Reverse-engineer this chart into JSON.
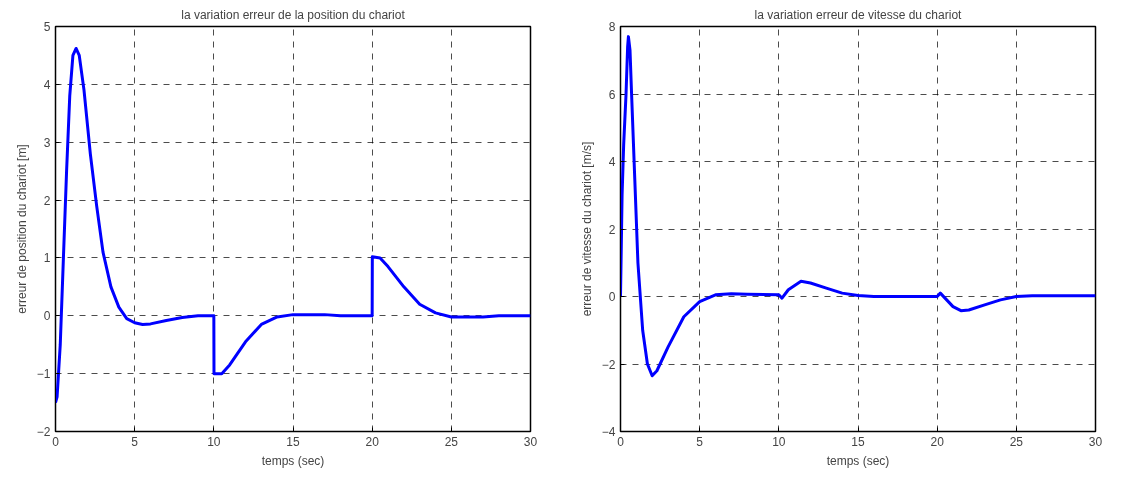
{
  "chart_data": [
    {
      "type": "line",
      "title": "la variation erreur de la position du chariot",
      "xlabel": "temps (sec)",
      "ylabel": "erreur de position du chariot [m]",
      "xlim": [
        0,
        30
      ],
      "ylim": [
        -2,
        5
      ],
      "xticks": [
        0,
        5,
        10,
        15,
        20,
        25,
        30
      ],
      "yticks": [
        -2,
        -1,
        0,
        1,
        2,
        3,
        4,
        5
      ],
      "grid": true,
      "line_style": "solid",
      "series": [
        {
          "color": "#0000ff",
          "x": [
            0,
            0.1,
            0.3,
            0.5,
            0.7,
            0.9,
            1.1,
            1.3,
            1.5,
            1.8,
            2.2,
            2.6,
            3.0,
            3.5,
            4.0,
            4.5,
            5.0,
            5.5,
            6,
            7,
            8,
            9,
            10,
            10.01,
            10.5,
            11,
            12,
            13,
            14,
            15,
            17,
            18,
            20,
            20.01,
            20.5,
            21,
            22,
            23,
            24,
            25,
            27,
            28,
            30
          ],
          "values": [
            -1.5,
            -1.4,
            -0.5,
            1.0,
            2.5,
            3.8,
            4.5,
            4.62,
            4.5,
            3.9,
            2.8,
            1.9,
            1.1,
            0.5,
            0.15,
            -0.05,
            -0.12,
            -0.15,
            -0.14,
            -0.08,
            -0.03,
            0,
            0,
            -1.0,
            -1.0,
            -0.85,
            -0.45,
            -0.15,
            -0.02,
            0.02,
            0.02,
            0,
            0,
            1.02,
            1.0,
            0.85,
            0.5,
            0.2,
            0.05,
            -0.02,
            -0.02,
            0,
            0
          ]
        }
      ]
    },
    {
      "type": "line",
      "title": "la variation erreur de vitesse du chariot",
      "xlabel": "temps (sec)",
      "ylabel": "erreur de vitesse du chariot [m/s]",
      "xlim": [
        0,
        30
      ],
      "ylim": [
        -4,
        8
      ],
      "xticks": [
        0,
        5,
        10,
        15,
        20,
        25,
        30
      ],
      "yticks": [
        -4,
        -2,
        0,
        2,
        4,
        6,
        8
      ],
      "grid": true,
      "line_style": "solid",
      "series": [
        {
          "color": "#0000ff",
          "x": [
            0,
            0.05,
            0.1,
            0.2,
            0.35,
            0.45,
            0.5,
            0.6,
            0.7,
            0.9,
            1.1,
            1.4,
            1.7,
            2.0,
            2.3,
            3,
            4,
            5,
            6,
            7,
            8,
            10,
            10.2,
            10.6,
            11.4,
            12,
            13,
            14,
            15,
            16,
            20,
            20.2,
            21,
            21.5,
            22,
            23,
            24,
            25,
            26,
            30
          ],
          "values": [
            0,
            1.5,
            3.0,
            4.5,
            6.0,
            7.4,
            7.7,
            7.3,
            6.0,
            3.5,
            1.0,
            -1.0,
            -2.0,
            -2.35,
            -2.2,
            -1.5,
            -0.6,
            -0.15,
            0.05,
            0.08,
            0.07,
            0.05,
            -0.05,
            0.2,
            0.45,
            0.4,
            0.25,
            0.1,
            0.03,
            0,
            0,
            0.1,
            -0.3,
            -0.42,
            -0.4,
            -0.25,
            -0.1,
            0,
            0.02,
            0.02
          ]
        }
      ]
    }
  ]
}
